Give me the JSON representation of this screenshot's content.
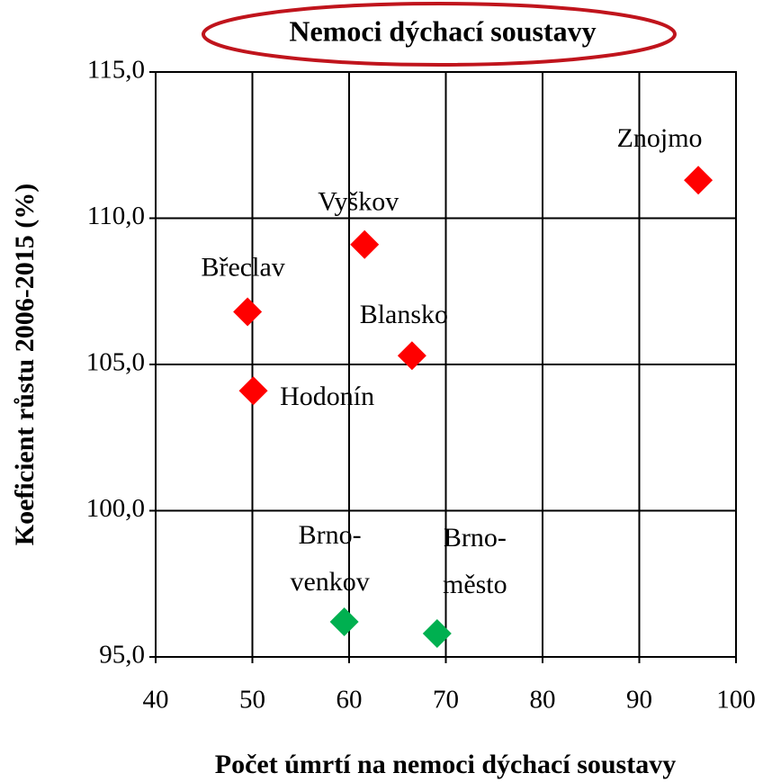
{
  "chart_data": {
    "type": "scatter",
    "title": "Nemoci dýchací soustavy",
    "x_label": "Počet úmrtí na nemoci dýchací soustavy",
    "y_label": "Koeficient růstu 2006-2015 (%)",
    "xlim": [
      40,
      100
    ],
    "xticks": [
      40,
      50,
      60,
      70,
      80,
      90,
      100
    ],
    "ylim": [
      95,
      115
    ],
    "yticks": [
      {
        "value": 95,
        "label": "95,0"
      },
      {
        "value": 100,
        "label": "100,0"
      },
      {
        "value": 105,
        "label": "105,0"
      },
      {
        "value": 110,
        "label": "110,0"
      },
      {
        "value": 115,
        "label": "115,0"
      }
    ],
    "grid": true,
    "series": [
      {
        "color": "#ff0000",
        "x": [
          96.1,
          61.6,
          49.5,
          66.5,
          50.1
        ],
        "values": [
          111.3,
          109.1,
          106.8,
          105.3,
          104.1
        ],
        "labels": [
          [
            "Znojmo"
          ],
          [
            "Vyškov"
          ],
          [
            "Břeclav"
          ],
          [
            "Blansko"
          ],
          [
            "Hodonín"
          ]
        ]
      },
      {
        "color": "#00b050",
        "x": [
          59.5,
          69.1
        ],
        "values": [
          96.2,
          95.8
        ],
        "labels": [
          [
            "Brno-",
            "venkov"
          ],
          [
            "Brno-",
            "město"
          ]
        ]
      }
    ]
  }
}
